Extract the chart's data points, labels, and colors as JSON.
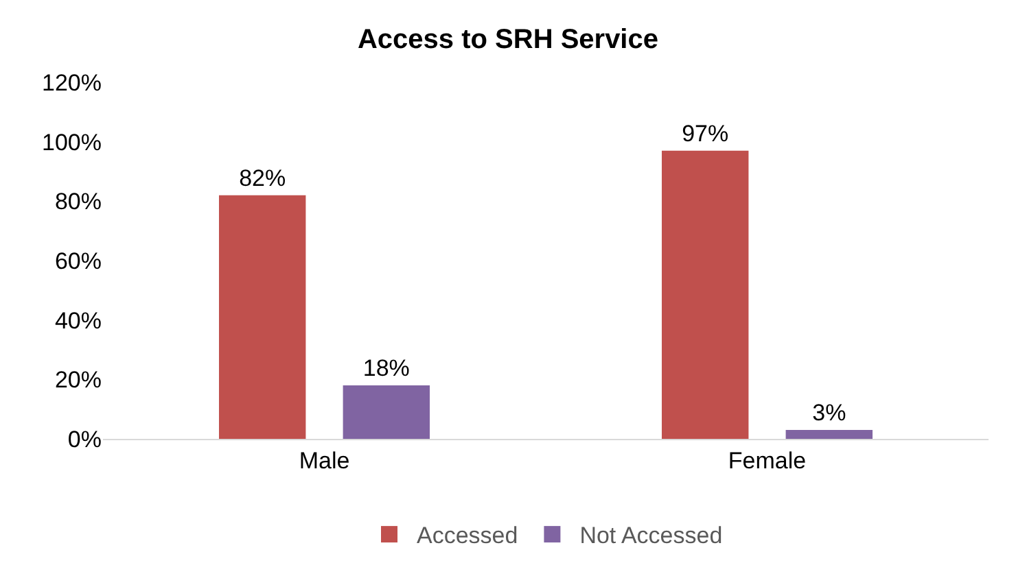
{
  "chart_data": {
    "type": "bar",
    "title": "Access to SRH Service",
    "categories": [
      "Male",
      "Female"
    ],
    "series": [
      {
        "name": "Accessed",
        "color": "#c0504d",
        "values": [
          82,
          97
        ],
        "value_labels": [
          "82%",
          "97%"
        ]
      },
      {
        "name": "Not Accessed",
        "color": "#8064a2",
        "values": [
          18,
          3
        ],
        "value_labels": [
          "18%",
          "3%"
        ]
      }
    ],
    "ylim": [
      0,
      120
    ],
    "yticks": [
      {
        "value": 0,
        "label": "0%"
      },
      {
        "value": 20,
        "label": "20%"
      },
      {
        "value": 40,
        "label": "40%"
      },
      {
        "value": 60,
        "label": "60%"
      },
      {
        "value": 80,
        "label": "80%"
      },
      {
        "value": 100,
        "label": "100%"
      },
      {
        "value": 120,
        "label": "120%"
      }
    ],
    "grid": false,
    "legend": "bottom"
  }
}
